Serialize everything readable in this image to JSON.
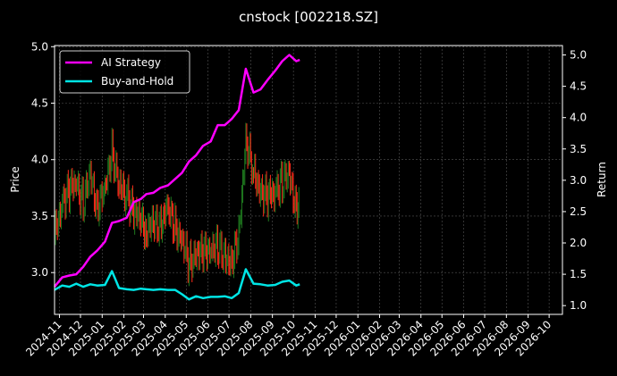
{
  "chart_data": {
    "type": "line",
    "title": "cnstock [002218.SZ]",
    "xlabel": "",
    "ylabel": "Price",
    "y2label": "Return",
    "ylim": [
      2.63,
      5.01
    ],
    "y2lim": [
      0.86,
      5.15
    ],
    "grid": true,
    "legend_position": "top-left",
    "x_ticks": [
      "2024-11",
      "2024-12",
      "2025-01",
      "2025-02",
      "2025-03",
      "2025-04",
      "2025-05",
      "2025-06",
      "2025-07",
      "2025-08",
      "2025-09",
      "2025-10",
      "2025-11",
      "2025-12",
      "2026-01",
      "2026-02",
      "2026-03",
      "2026-04",
      "2026-05",
      "2026-06",
      "2026-07",
      "2026-08",
      "2026-09",
      "2026-10"
    ],
    "y_ticks": [
      3.0,
      3.5,
      4.0,
      4.5,
      5.0
    ],
    "y2_ticks": [
      1.0,
      1.5,
      2.0,
      2.5,
      3.0,
      3.5,
      4.0,
      4.5,
      5.0
    ],
    "price_colors": {
      "up": "#1f7a1f",
      "down": "#ff2a1a"
    },
    "price_series": {
      "name": "",
      "x": [
        "2024-10-25",
        "2024-11-05",
        "2024-11-15",
        "2024-11-25",
        "2024-12-05",
        "2024-12-15",
        "2024-12-25",
        "2025-01-05",
        "2025-01-15",
        "2025-01-25",
        "2025-02-05",
        "2025-02-15",
        "2025-02-25",
        "2025-03-05",
        "2025-03-15",
        "2025-03-25",
        "2025-04-05",
        "2025-04-15",
        "2025-04-25",
        "2025-05-05",
        "2025-05-15",
        "2025-05-25",
        "2025-06-05",
        "2025-06-15",
        "2025-06-25",
        "2025-07-05",
        "2025-07-15",
        "2025-07-25",
        "2025-08-05",
        "2025-08-15",
        "2025-08-25",
        "2025-09-05",
        "2025-09-15",
        "2025-09-25",
        "2025-10-05",
        "2025-10-10"
      ],
      "values": [
        3.3,
        3.65,
        3.72,
        3.8,
        3.62,
        3.85,
        3.6,
        3.7,
        4.1,
        3.75,
        3.7,
        3.55,
        3.45,
        3.4,
        3.4,
        3.45,
        3.55,
        3.4,
        3.3,
        3.05,
        3.2,
        3.15,
        3.25,
        3.2,
        3.15,
        3.1,
        3.3,
        4.2,
        3.85,
        3.75,
        3.65,
        3.75,
        3.8,
        3.85,
        3.6,
        3.62
      ]
    },
    "series": [
      {
        "name": "AI Strategy",
        "color": "#ff00ff",
        "x": [
          "2024-10-25",
          "2024-11-05",
          "2024-11-15",
          "2024-11-25",
          "2024-12-05",
          "2024-12-15",
          "2024-12-25",
          "2025-01-05",
          "2025-01-15",
          "2025-01-25",
          "2025-02-05",
          "2025-02-15",
          "2025-02-25",
          "2025-03-05",
          "2025-03-15",
          "2025-03-25",
          "2025-04-05",
          "2025-04-15",
          "2025-04-25",
          "2025-05-05",
          "2025-05-15",
          "2025-05-25",
          "2025-06-05",
          "2025-06-15",
          "2025-06-25",
          "2025-07-05",
          "2025-07-15",
          "2025-07-25",
          "2025-08-05",
          "2025-08-15",
          "2025-08-25",
          "2025-09-05",
          "2025-09-15",
          "2025-09-25",
          "2025-10-05",
          "2025-10-10"
        ],
        "values": [
          1.3,
          1.45,
          1.48,
          1.5,
          1.62,
          1.78,
          1.88,
          2.02,
          2.32,
          2.35,
          2.4,
          2.65,
          2.7,
          2.78,
          2.8,
          2.88,
          2.92,
          3.02,
          3.12,
          3.3,
          3.4,
          3.55,
          3.62,
          3.88,
          3.88,
          3.98,
          4.12,
          4.78,
          4.4,
          4.45,
          4.6,
          4.75,
          4.9,
          5.0,
          4.9,
          4.92
        ]
      },
      {
        "name": "Buy-and-Hold",
        "color": "#00e5e5",
        "x": [
          "2024-10-25",
          "2024-11-05",
          "2024-11-15",
          "2024-11-25",
          "2024-12-05",
          "2024-12-15",
          "2024-12-25",
          "2025-01-05",
          "2025-01-15",
          "2025-01-25",
          "2025-02-05",
          "2025-02-15",
          "2025-02-25",
          "2025-03-05",
          "2025-03-15",
          "2025-03-25",
          "2025-04-05",
          "2025-04-15",
          "2025-04-25",
          "2025-05-05",
          "2025-05-15",
          "2025-05-25",
          "2025-06-05",
          "2025-06-15",
          "2025-06-25",
          "2025-07-05",
          "2025-07-15",
          "2025-07-25",
          "2025-08-05",
          "2025-08-15",
          "2025-08-25",
          "2025-09-05",
          "2025-09-15",
          "2025-09-25",
          "2025-10-05",
          "2025-10-10"
        ],
        "values": [
          1.25,
          1.32,
          1.3,
          1.35,
          1.3,
          1.34,
          1.32,
          1.33,
          1.55,
          1.28,
          1.26,
          1.25,
          1.27,
          1.26,
          1.25,
          1.26,
          1.25,
          1.25,
          1.18,
          1.1,
          1.15,
          1.12,
          1.14,
          1.14,
          1.15,
          1.12,
          1.2,
          1.58,
          1.35,
          1.34,
          1.32,
          1.33,
          1.38,
          1.4,
          1.32,
          1.34
        ]
      }
    ]
  }
}
